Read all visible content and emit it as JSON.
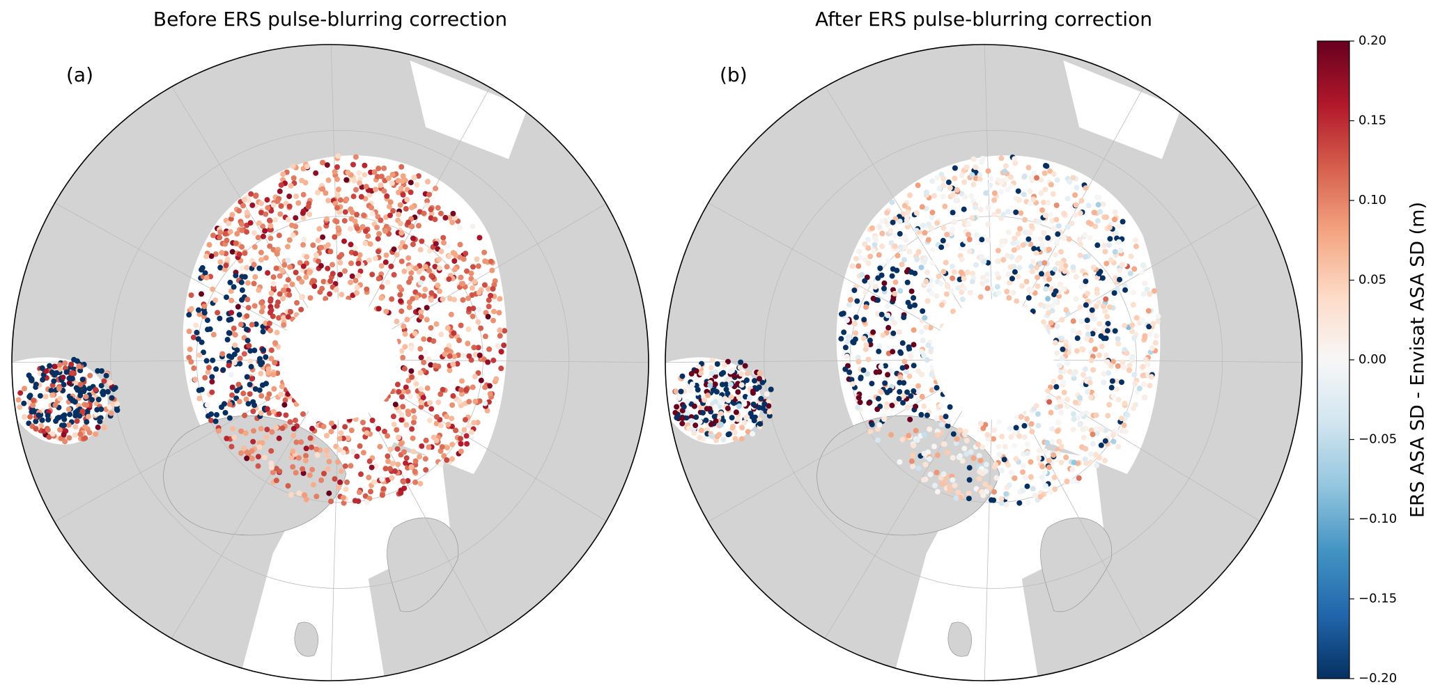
{
  "panels": [
    {
      "title": "Before ERS pulse-blurring correction",
      "label": "(a)"
    },
    {
      "title": "After ERS pulse-blurring correction",
      "label": "(b)"
    }
  ],
  "colorbar": {
    "label": "ERS ASA SD - Envisat ASA SD (m)",
    "lim": [
      -0.2,
      0.2
    ],
    "ticks": [
      {
        "value": 0.2,
        "label": "0.20"
      },
      {
        "value": 0.15,
        "label": "0.15"
      },
      {
        "value": 0.1,
        "label": "0.10"
      },
      {
        "value": 0.05,
        "label": "0.05"
      },
      {
        "value": 0,
        "label": "0.00"
      },
      {
        "value": -0.05,
        "label": "−0.05"
      },
      {
        "value": -0.1,
        "label": "−0.10"
      },
      {
        "value": -0.15,
        "label": "−0.15"
      },
      {
        "value": -0.2,
        "label": "−0.20"
      }
    ]
  }
}
